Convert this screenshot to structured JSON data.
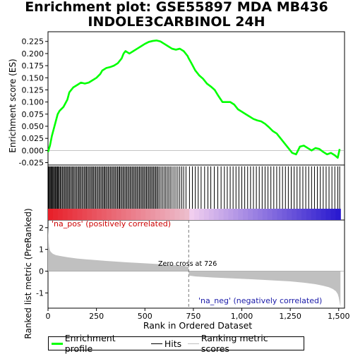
{
  "title_line1": "Enrichment plot: GSE55897 MDA MB436",
  "title_line2": "INDOLE3CARBINOL 24H",
  "colors": {
    "enrichment_line": "#00ff00",
    "hits": "#000000",
    "ranking_fill": "#c0c0c0",
    "pos_band": "#e8202a",
    "neg_band": "#2a1ad0"
  },
  "chart_data": [
    {
      "type": "line",
      "panel": "enrichment_profile",
      "ylabel": "Enrichment score (ES)",
      "xlim": [
        0,
        1530
      ],
      "ylim": [
        -0.03,
        0.245
      ],
      "yticks": [
        "0.225",
        "0.200",
        "0.175",
        "0.150",
        "0.125",
        "0.100",
        "0.075",
        "0.050",
        "0.025",
        "0.000",
        "-0.025"
      ],
      "ytick_values": [
        0.225,
        0.2,
        0.175,
        0.15,
        0.125,
        0.1,
        0.075,
        0.05,
        0.025,
        0.0,
        -0.025
      ],
      "grid": false,
      "x": [
        0,
        10,
        20,
        30,
        40,
        50,
        60,
        80,
        100,
        110,
        120,
        130,
        150,
        170,
        190,
        210,
        230,
        250,
        270,
        280,
        300,
        320,
        340,
        360,
        380,
        390,
        400,
        420,
        440,
        460,
        480,
        500,
        520,
        540,
        560,
        580,
        600,
        620,
        640,
        660,
        680,
        700,
        720,
        726,
        740,
        760,
        780,
        800,
        820,
        840,
        860,
        880,
        900,
        920,
        940,
        960,
        980,
        1000,
        1020,
        1040,
        1060,
        1080,
        1100,
        1120,
        1140,
        1160,
        1180,
        1200,
        1220,
        1240,
        1260,
        1280,
        1300,
        1320,
        1340,
        1360,
        1380,
        1400,
        1420,
        1440,
        1460,
        1480,
        1495,
        1505
      ],
      "y": [
        -0.003,
        0.01,
        0.03,
        0.045,
        0.06,
        0.075,
        0.082,
        0.09,
        0.105,
        0.12,
        0.125,
        0.13,
        0.135,
        0.14,
        0.138,
        0.14,
        0.145,
        0.15,
        0.158,
        0.165,
        0.17,
        0.172,
        0.175,
        0.18,
        0.19,
        0.2,
        0.205,
        0.2,
        0.205,
        0.21,
        0.215,
        0.22,
        0.224,
        0.226,
        0.227,
        0.225,
        0.22,
        0.215,
        0.21,
        0.208,
        0.21,
        0.205,
        0.195,
        0.19,
        0.18,
        0.165,
        0.155,
        0.148,
        0.138,
        0.132,
        0.125,
        0.112,
        0.1,
        0.1,
        0.1,
        0.095,
        0.085,
        0.08,
        0.075,
        0.07,
        0.065,
        0.062,
        0.06,
        0.055,
        0.048,
        0.04,
        0.035,
        0.025,
        0.015,
        0.005,
        -0.005,
        -0.008,
        0.008,
        0.01,
        0.005,
        0.0,
        0.005,
        0.003,
        -0.003,
        -0.008,
        -0.005,
        -0.01,
        -0.015,
        0.003
      ]
    },
    {
      "type": "scatter",
      "panel": "hits",
      "series": [
        {
          "name": "Hits",
          "x": [
            2,
            5,
            10,
            14,
            18,
            22,
            26,
            31,
            36,
            40,
            44,
            49,
            53,
            58,
            63,
            68,
            74,
            79,
            85,
            90,
            96,
            101,
            107,
            112,
            118,
            124,
            129,
            135,
            141,
            147,
            153,
            159,
            164,
            170,
            176,
            182,
            188,
            194,
            199,
            205,
            211,
            217,
            223,
            229,
            234,
            240,
            246,
            252,
            258,
            264,
            270,
            276,
            282,
            288,
            293,
            299,
            305,
            311,
            317,
            323,
            329,
            335,
            341,
            347,
            353,
            359,
            365,
            370,
            376,
            382,
            388,
            394,
            400,
            406,
            412,
            418,
            424,
            430,
            436,
            442,
            448,
            454,
            460,
            466,
            472,
            478,
            484,
            490,
            496,
            502,
            508,
            514,
            520,
            526,
            532,
            538,
            544,
            550,
            556,
            562,
            568,
            575,
            583,
            591,
            599,
            607,
            615,
            623,
            631,
            640,
            650,
            660,
            670,
            680,
            690,
            700,
            712,
            730,
            745,
            760,
            775,
            790,
            808,
            825,
            840,
            858,
            876,
            893,
            910,
            925,
            940,
            955,
            970,
            985,
            1000,
            1015,
            1030,
            1045,
            1060,
            1075,
            1090,
            1105,
            1120,
            1135,
            1150,
            1165,
            1180,
            1195,
            1210,
            1225,
            1240,
            1255,
            1270,
            1285,
            1300,
            1315,
            1330,
            1345,
            1360,
            1375,
            1390,
            1405,
            1420,
            1435,
            1450,
            1465,
            1480,
            1495,
            1505
          ]
        }
      ]
    },
    {
      "type": "area",
      "panel": "ranked_list_metric",
      "ylabel": "Ranked list metric (PreRanked)",
      "xlabel": "Rank in Ordered Dataset",
      "xlim": [
        0,
        1530
      ],
      "ylim": [
        -1.7,
        2.35
      ],
      "yticks": [
        "2",
        "1",
        "0",
        "-1"
      ],
      "ytick_values": [
        2,
        1,
        0,
        -1
      ],
      "xticks": [
        "0",
        "250",
        "500",
        "750",
        "1,000",
        "1,250",
        "1,500"
      ],
      "xtick_values": [
        0,
        250,
        500,
        750,
        1000,
        1250,
        1500
      ],
      "x": [
        0,
        3,
        6,
        10,
        15,
        25,
        40,
        60,
        100,
        150,
        200,
        300,
        400,
        500,
        600,
        700,
        725,
        727,
        760,
        850,
        950,
        1050,
        1150,
        1250,
        1320,
        1380,
        1420,
        1450,
        1470,
        1485,
        1495,
        1500,
        1505,
        1509
      ],
      "y": [
        2.05,
        1.4,
        1.1,
        0.95,
        0.88,
        0.8,
        0.74,
        0.7,
        0.64,
        0.58,
        0.54,
        0.47,
        0.41,
        0.36,
        0.31,
        0.25,
        0.2,
        -0.2,
        -0.24,
        -0.29,
        -0.33,
        -0.37,
        -0.42,
        -0.47,
        -0.53,
        -0.6,
        -0.67,
        -0.74,
        -0.82,
        -0.92,
        -1.05,
        -1.2,
        -1.45,
        -1.62
      ],
      "zero_cross": 726,
      "annotations": [
        "Zero cross at 726",
        "'na_pos' (positively correlated)",
        "'na_neg' (negatively correlated)"
      ]
    }
  ],
  "legend": {
    "placement": "bottom",
    "items": [
      {
        "label": "Enrichment profile"
      },
      {
        "label": "Hits"
      },
      {
        "label": "Ranking metric scores"
      }
    ]
  }
}
